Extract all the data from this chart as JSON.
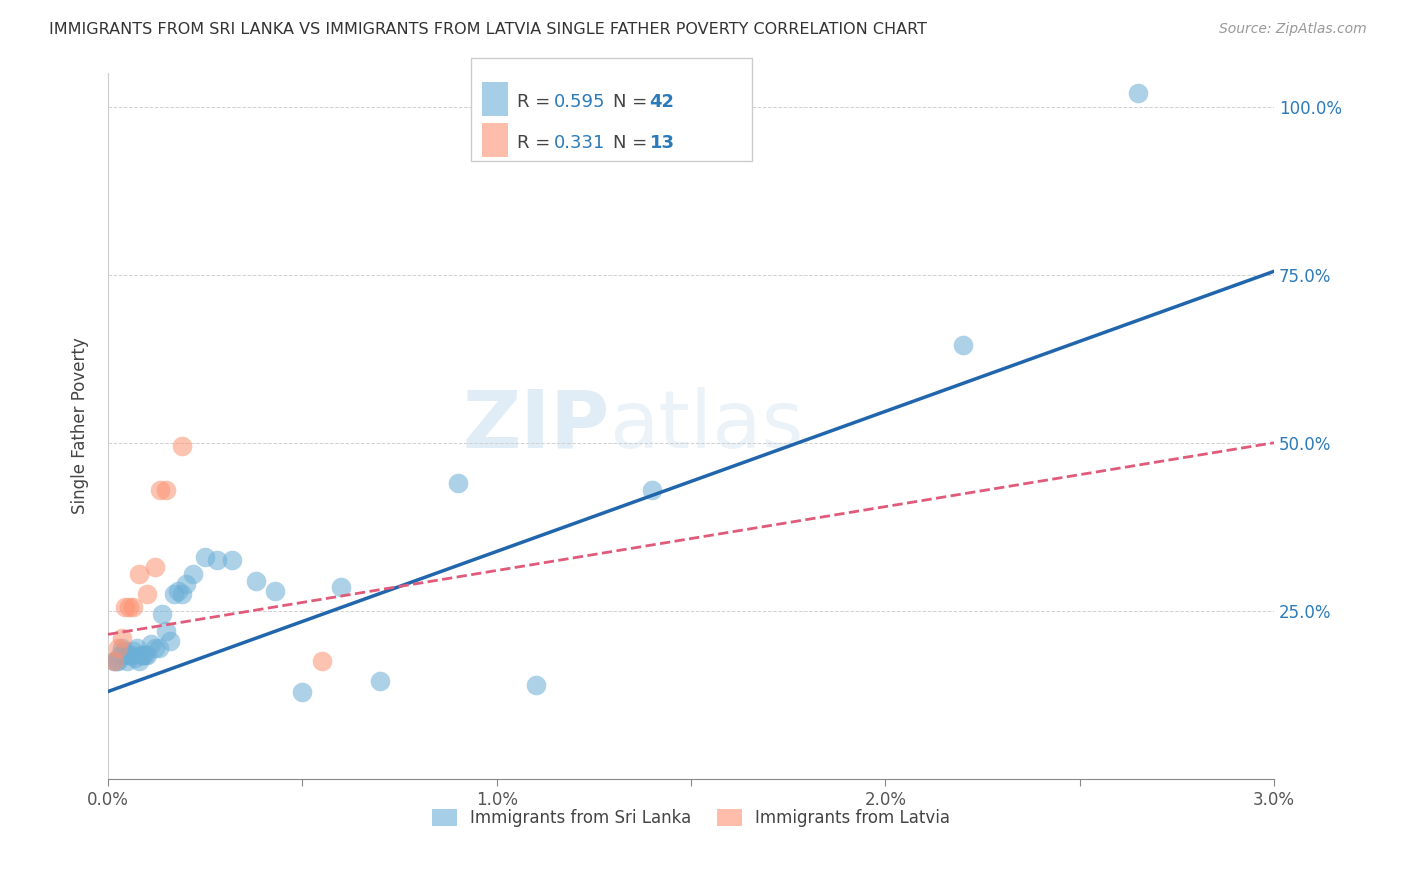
{
  "title": "IMMIGRANTS FROM SRI LANKA VS IMMIGRANTS FROM LATVIA SINGLE FATHER POVERTY CORRELATION CHART",
  "source": "Source: ZipAtlas.com",
  "xlabel": "",
  "ylabel": "Single Father Poverty",
  "series1_name": "Immigrants from Sri Lanka",
  "series2_name": "Immigrants from Latvia",
  "series1_color": "#6baed6",
  "series2_color": "#fc9272",
  "series1_r": "0.595",
  "series1_n": "42",
  "series2_r": "0.331",
  "series2_n": "13",
  "watermark": "ZIPatlas",
  "xlim": [
    0.0,
    0.03
  ],
  "ylim": [
    0.0,
    1.05
  ],
  "right_yticks": [
    0.25,
    0.5,
    0.75,
    1.0
  ],
  "right_yticklabels": [
    "25.0%",
    "50.0%",
    "75.0%",
    "100.0%"
  ],
  "xticks": [
    0.0,
    0.005,
    0.01,
    0.015,
    0.02,
    0.025,
    0.03
  ],
  "xticklabels": [
    "0.0%",
    "",
    "1.0%",
    "",
    "2.0%",
    "",
    "3.0%"
  ],
  "blue_line_x0": 0.0,
  "blue_line_y0": 0.13,
  "blue_line_x1": 0.03,
  "blue_line_y1": 0.755,
  "pink_line_x0": 0.0,
  "pink_line_y0": 0.215,
  "pink_line_x1": 0.03,
  "pink_line_y1": 0.5,
  "sri_lanka_x": [
    0.00015,
    0.0002,
    0.00025,
    0.0003,
    0.00035,
    0.0004,
    0.00045,
    0.0005,
    0.00055,
    0.0006,
    0.00065,
    0.0007,
    0.00075,
    0.0008,
    0.00085,
    0.0009,
    0.00095,
    0.001,
    0.0011,
    0.0012,
    0.0013,
    0.0014,
    0.0015,
    0.0016,
    0.0017,
    0.0018,
    0.0019,
    0.002,
    0.0022,
    0.0025,
    0.0028,
    0.0032,
    0.0038,
    0.0043,
    0.005,
    0.006,
    0.007,
    0.009,
    0.011,
    0.014,
    0.022,
    0.0265
  ],
  "sri_lanka_y": [
    0.175,
    0.175,
    0.175,
    0.185,
    0.195,
    0.19,
    0.185,
    0.175,
    0.185,
    0.185,
    0.19,
    0.18,
    0.195,
    0.175,
    0.185,
    0.185,
    0.185,
    0.185,
    0.2,
    0.195,
    0.195,
    0.245,
    0.22,
    0.205,
    0.275,
    0.28,
    0.275,
    0.29,
    0.305,
    0.33,
    0.325,
    0.325,
    0.295,
    0.28,
    0.13,
    0.285,
    0.145,
    0.44,
    0.14,
    0.43,
    0.645,
    1.02
  ],
  "latvia_x": [
    0.00015,
    0.00025,
    0.00035,
    0.00045,
    0.00055,
    0.00065,
    0.0008,
    0.001,
    0.0012,
    0.00135,
    0.0015,
    0.0019,
    0.0055
  ],
  "latvia_y": [
    0.175,
    0.195,
    0.21,
    0.255,
    0.255,
    0.255,
    0.305,
    0.275,
    0.315,
    0.43,
    0.43,
    0.495,
    0.175
  ]
}
